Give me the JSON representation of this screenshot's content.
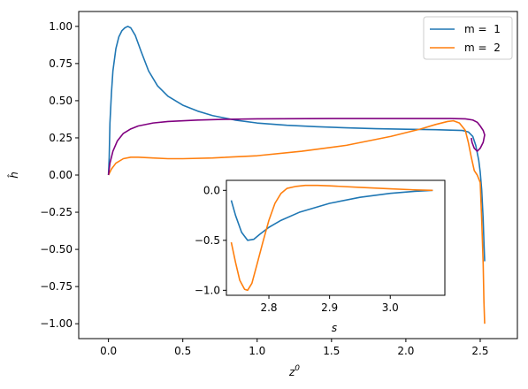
{
  "chart_data": [
    {
      "type": "line",
      "xlabel": "z",
      "xlabel_sup": "0",
      "ylabel": "ĥ",
      "xlim": [
        -0.2,
        2.75
      ],
      "ylim": [
        -1.1,
        1.1
      ],
      "xticks": [
        0.0,
        0.5,
        1.0,
        1.5,
        2.0,
        2.5
      ],
      "xtick_labels": [
        "0.0",
        "0.5",
        "1.0",
        "1.5",
        "2.0",
        "2.5"
      ],
      "yticks": [
        1.0,
        0.75,
        0.5,
        0.25,
        0.0,
        -0.25,
        -0.5,
        -0.75,
        -1.0
      ],
      "ytick_labels": [
        "1.00",
        "0.75",
        "0.50",
        "0.25",
        "0.00",
        "−0.25",
        "−0.50",
        "−0.75",
        "−1.00"
      ],
      "legend": {
        "placement": "top-right",
        "entries": [
          "m =  1",
          "m =  2"
        ]
      },
      "series": [
        {
          "name": "m =  1",
          "color": "#1f77b4",
          "x": [
            0.0,
            0.005,
            0.01,
            0.02,
            0.03,
            0.05,
            0.07,
            0.09,
            0.11,
            0.13,
            0.15,
            0.18,
            0.22,
            0.27,
            0.33,
            0.4,
            0.5,
            0.6,
            0.7,
            0.85,
            1.0,
            1.2,
            1.4,
            1.6,
            1.8,
            2.0,
            2.2,
            2.3,
            2.38,
            2.42,
            2.45,
            2.47,
            2.49,
            2.5,
            2.51,
            2.52,
            2.525,
            2.53
          ],
          "y": [
            0.0,
            0.12,
            0.35,
            0.55,
            0.7,
            0.85,
            0.93,
            0.97,
            0.99,
            1.0,
            0.99,
            0.94,
            0.83,
            0.7,
            0.6,
            0.53,
            0.47,
            0.43,
            0.4,
            0.37,
            0.35,
            0.335,
            0.325,
            0.318,
            0.312,
            0.308,
            0.305,
            0.302,
            0.3,
            0.29,
            0.26,
            0.2,
            0.1,
            0.02,
            -0.1,
            -0.3,
            -0.45,
            -0.58
          ]
        },
        {
          "name": "m =  2",
          "color": "#ff7f0e",
          "x": [
            0.0,
            0.02,
            0.05,
            0.1,
            0.15,
            0.2,
            0.3,
            0.4,
            0.5,
            0.7,
            1.0,
            1.3,
            1.6,
            1.9,
            2.1,
            2.2,
            2.28,
            2.32,
            2.36,
            2.4,
            2.42,
            2.44,
            2.46,
            2.48,
            2.5,
            2.51,
            2.52,
            2.525,
            2.53
          ],
          "y": [
            0.0,
            0.04,
            0.08,
            0.11,
            0.12,
            0.12,
            0.115,
            0.11,
            0.11,
            0.115,
            0.13,
            0.16,
            0.2,
            0.26,
            0.31,
            0.34,
            0.36,
            0.365,
            0.35,
            0.3,
            0.22,
            0.12,
            0.03,
            0.0,
            -0.05,
            -0.3,
            -0.6,
            -0.85,
            -1.0
          ]
        },
        {
          "name": "",
          "color": "#800080",
          "x": [
            0.0,
            0.01,
            0.03,
            0.06,
            0.1,
            0.15,
            0.2,
            0.3,
            0.4,
            0.6,
            0.8,
            1.0,
            1.5,
            2.0,
            2.3,
            2.4,
            2.45,
            2.48,
            2.5,
            2.52,
            2.53,
            2.52,
            2.5,
            2.48,
            2.46,
            2.445,
            2.44
          ],
          "y": [
            0.0,
            0.08,
            0.16,
            0.23,
            0.28,
            0.31,
            0.33,
            0.35,
            0.36,
            0.37,
            0.375,
            0.378,
            0.38,
            0.38,
            0.38,
            0.378,
            0.37,
            0.355,
            0.33,
            0.3,
            0.27,
            0.22,
            0.18,
            0.16,
            0.18,
            0.22,
            0.25
          ]
        }
      ]
    },
    {
      "type": "line",
      "inset": true,
      "xlabel": "s",
      "xlim": [
        2.73,
        3.09
      ],
      "ylim": [
        -1.05,
        0.1
      ],
      "xticks": [
        2.8,
        2.9,
        3.0
      ],
      "xtick_labels": [
        "2.8",
        "2.9",
        "3.0"
      ],
      "yticks": [
        0.0,
        -0.5,
        -1.0
      ],
      "ytick_labels": [
        "0.0",
        "−0.5",
        "−1.0"
      ],
      "series": [
        {
          "name": "m =  1",
          "color": "#1f77b4",
          "x": [
            2.738,
            2.745,
            2.755,
            2.765,
            2.775,
            2.785,
            2.8,
            2.82,
            2.85,
            2.9,
            2.95,
            3.0,
            3.04,
            3.07
          ],
          "y": [
            -0.1,
            -0.25,
            -0.42,
            -0.5,
            -0.49,
            -0.44,
            -0.37,
            -0.3,
            -0.22,
            -0.13,
            -0.07,
            -0.03,
            -0.01,
            0.0
          ]
        },
        {
          "name": "m =  2",
          "color": "#ff7f0e",
          "x": [
            2.738,
            2.745,
            2.752,
            2.76,
            2.765,
            2.772,
            2.78,
            2.79,
            2.8,
            2.81,
            2.82,
            2.83,
            2.845,
            2.86,
            2.88,
            2.9,
            2.95,
            3.0,
            3.04,
            3.07
          ],
          "y": [
            -0.52,
            -0.72,
            -0.9,
            -0.99,
            -1.0,
            -0.93,
            -0.75,
            -0.52,
            -0.3,
            -0.13,
            -0.03,
            0.02,
            0.04,
            0.05,
            0.05,
            0.045,
            0.03,
            0.015,
            0.005,
            0.0
          ]
        }
      ]
    }
  ]
}
